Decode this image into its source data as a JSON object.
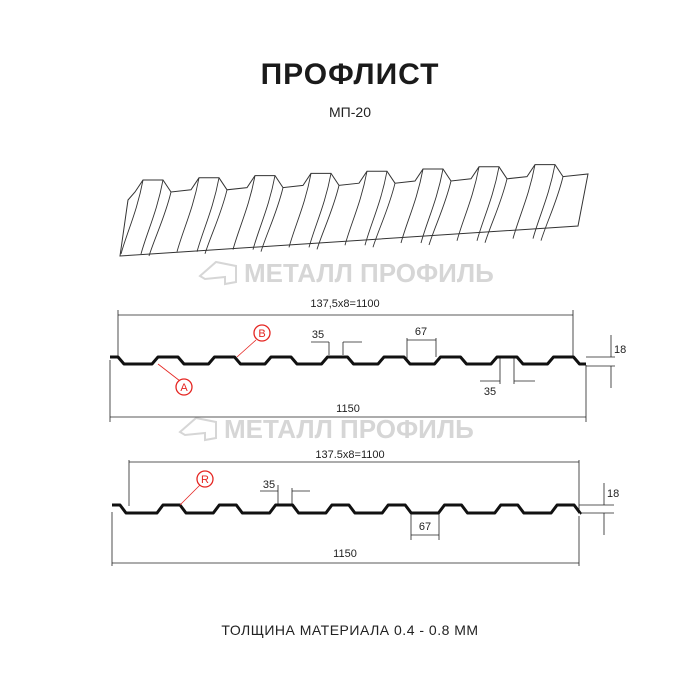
{
  "title": "ПРОФЛИСТ",
  "subtitle": "МП-20",
  "footer": "ТОЛЩИНА МАТЕРИАЛА 0.4 - 0.8 ММ",
  "watermark": "МЕТАЛЛ ПРОФИЛЬ",
  "colors": {
    "profile": "#111111",
    "marker": "#e52521",
    "watermark": "#d6d6d6"
  },
  "profile_a": {
    "pitch_label": "137,5x8=1100",
    "width_label": "1150",
    "top_label": "35",
    "bottom_label": "35",
    "rib_label": "67",
    "height_label": "18",
    "marker_a": "A",
    "marker_b": "B"
  },
  "profile_b": {
    "pitch_label": "137.5x8=1100",
    "width_label": "1150",
    "top_label": "35",
    "rib_label": "67",
    "height_label": "18",
    "marker_r": "R"
  }
}
